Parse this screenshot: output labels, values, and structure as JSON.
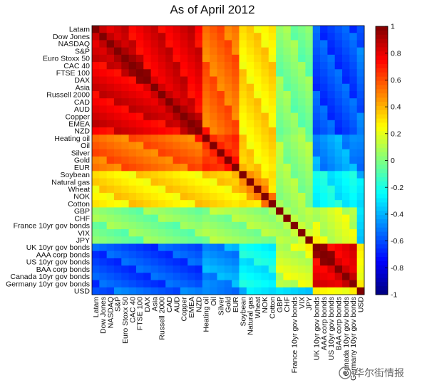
{
  "chart_data": {
    "type": "heatmap",
    "title": "As of April 2012",
    "labels": [
      "Latam",
      "Dow Jones",
      "NASDAQ",
      "S&P",
      "Euro Stoxx 50",
      "CAC 40",
      "FTSE 100",
      "DAX",
      "Asia",
      "Russell 2000",
      "CAD",
      "AUD",
      "Copper",
      "EMEA",
      "NZD",
      "Heating oil",
      "Oil",
      "Silver",
      "Gold",
      "EUR",
      "Soybean",
      "Natural gas",
      "Wheat",
      "NOK",
      "Cotton",
      "GBP",
      "CHF",
      "France 10yr gov bonds",
      "VIX",
      "JPY",
      "UK 10yr gov bonds",
      "AAA corp bonds",
      "US 10yr gov bonds",
      "BAA corp bonds",
      "Canada 10yr gov bonds",
      "Germany 10yr gov bonds",
      "USD"
    ],
    "colorbar": {
      "min": -1,
      "max": 1,
      "ticks": [
        -1,
        -0.8,
        -0.6,
        -0.4,
        -0.2,
        0,
        0.2,
        0.4,
        0.6,
        0.8,
        1
      ],
      "tick_labels": [
        "-1",
        "-0.8",
        "-0.6",
        "-0.4",
        "-0.2",
        "0",
        "0.2",
        "0.4",
        "0.6",
        "0.8",
        "1"
      ],
      "colormap": "jet"
    },
    "group_ids": [
      0,
      0,
      0,
      0,
      0,
      0,
      0,
      0,
      0,
      0,
      0,
      0,
      0,
      0,
      0,
      1,
      1,
      1,
      1,
      1,
      2,
      2,
      2,
      2,
      2,
      3,
      3,
      3,
      3,
      3,
      4,
      4,
      4,
      4,
      4,
      4,
      5
    ],
    "group_blocks": [
      [
        0.8,
        0.55,
        0.3,
        0.0,
        -0.6,
        -0.55
      ],
      [
        0.55,
        0.65,
        0.3,
        0.05,
        -0.45,
        -0.5
      ],
      [
        0.3,
        0.3,
        0.35,
        0.05,
        -0.25,
        -0.35
      ],
      [
        0.0,
        0.05,
        0.05,
        0.05,
        0.15,
        -0.3
      ],
      [
        -0.6,
        -0.45,
        -0.25,
        0.15,
        0.8,
        0.2
      ],
      [
        -0.55,
        -0.5,
        -0.35,
        -0.3,
        0.2,
        1.0
      ]
    ]
  },
  "watermark": "华尔街情报"
}
